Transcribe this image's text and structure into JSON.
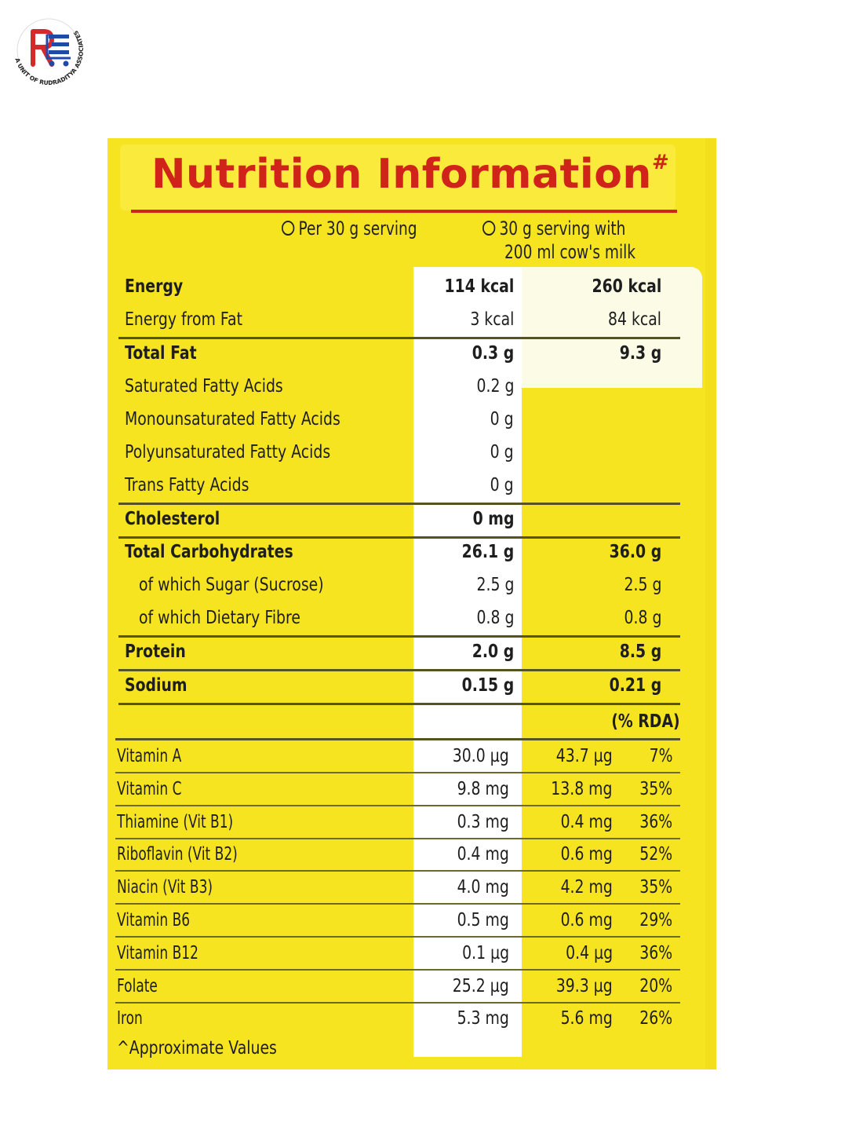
{
  "logo": {
    "caption": "A UNIT OF RUDRADITYA ASSOCIATES",
    "colors": {
      "red": "#d42a2a",
      "blue": "#1f4aa8"
    }
  },
  "panel": {
    "title": "Nutrition Information",
    "title_mark": "#",
    "col1_header": "Per 30 g serving",
    "col2_header_line1": "30 g serving with",
    "col2_header_line2": "200 ml cow's milk",
    "rda_header": "(% RDA)",
    "footnote": "^Approximate Values",
    "colors": {
      "background": "#f7e421",
      "title": "#d0241b"
    }
  },
  "rows": [
    {
      "label": "Energy",
      "v1": "114 kcal",
      "v2": "260 kcal",
      "bold": true
    },
    {
      "label": "Energy from Fat",
      "v1": "3 kcal",
      "v2": "84 kcal"
    },
    {
      "label": "Total Fat",
      "v1": "0.3 g",
      "v2": "9.3 g",
      "bold": true
    },
    {
      "label": "Saturated Fatty Acids",
      "v1": "0.2 g",
      "v2": ""
    },
    {
      "label": "Monounsaturated Fatty Acids",
      "v1": "0 g",
      "v2": ""
    },
    {
      "label": "Polyunsaturated Fatty Acids",
      "v1": "0 g",
      "v2": ""
    },
    {
      "label": "Trans Fatty Acids",
      "v1": "0 g",
      "v2": ""
    },
    {
      "label": "Cholesterol",
      "v1": "0 mg",
      "v2": "",
      "bold": true
    },
    {
      "label": "Total Carbohydrates",
      "v1": "26.1 g",
      "v2": "36.0 g",
      "bold": true
    },
    {
      "label": "of which Sugar (Sucrose)",
      "v1": "2.5 g",
      "v2": "2.5 g",
      "indent": true
    },
    {
      "label": "of which Dietary Fibre",
      "v1": "0.8 g",
      "v2": "0.8 g",
      "indent": true
    },
    {
      "label": "Protein",
      "v1": "2.0 g",
      "v2": "8.5 g",
      "bold": true
    },
    {
      "label": "Sodium",
      "v1": "0.15 g",
      "v2": "0.21 g",
      "bold": true
    }
  ],
  "vitamins": [
    {
      "label": "Vitamin A",
      "v1": "30.0 µg",
      "v2": "43.7 µg",
      "rda": "7%"
    },
    {
      "label": "Vitamin C",
      "v1": "9.8 mg",
      "v2": "13.8 mg",
      "rda": "35%"
    },
    {
      "label": "Thiamine (Vit B1)",
      "v1": "0.3 mg",
      "v2": "0.4 mg",
      "rda": "36%"
    },
    {
      "label": "Riboflavin (Vit B2)",
      "v1": "0.4 mg",
      "v2": "0.6 mg",
      "rda": "52%"
    },
    {
      "label": "Niacin (Vit B3)",
      "v1": "4.0 mg",
      "v2": "4.2 mg",
      "rda": "35%"
    },
    {
      "label": "Vitamin B6",
      "v1": "0.5 mg",
      "v2": "0.6 mg",
      "rda": "29%"
    },
    {
      "label": "Vitamin B12",
      "v1": "0.1 µg",
      "v2": "0.4 µg",
      "rda": "36%"
    },
    {
      "label": "Folate",
      "v1": "25.2 µg",
      "v2": "39.3 µg",
      "rda": "20%"
    },
    {
      "label": "Iron",
      "v1": "5.3 mg",
      "v2": "5.6 mg",
      "rda": "26%"
    }
  ]
}
